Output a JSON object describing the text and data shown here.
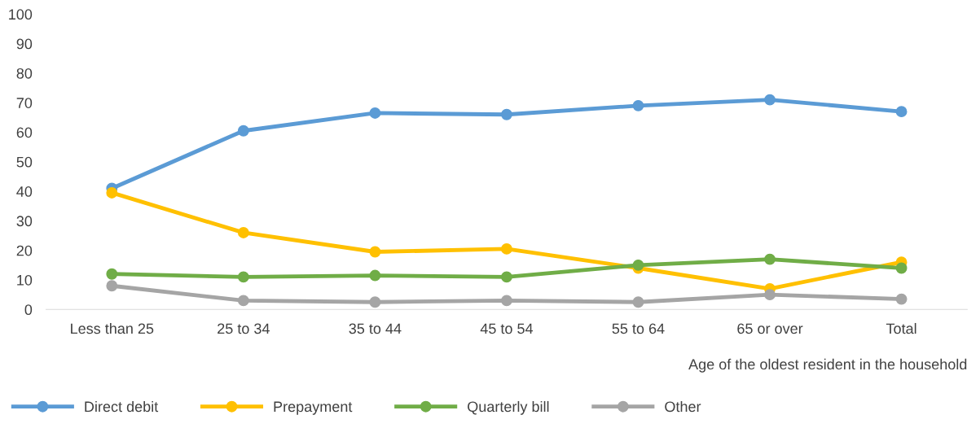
{
  "chart_data": {
    "type": "line",
    "xlabel": "Age of the oldest resident in the household",
    "categories": [
      "Less than 25",
      "25 to 34",
      "35 to 44",
      "45 to 54",
      "55 to 64",
      "65 or over",
      "Total"
    ],
    "series": [
      {
        "name": "Direct debit",
        "color": "#5b9bd5",
        "values": [
          41,
          60.5,
          66.5,
          66,
          69,
          71,
          67
        ]
      },
      {
        "name": "Prepayment",
        "color": "#ffc000",
        "values": [
          39.5,
          26,
          19.5,
          20.5,
          14,
          7,
          16
        ]
      },
      {
        "name": "Quarterly bill",
        "color": "#70ad47",
        "values": [
          12,
          11,
          11.5,
          11,
          15,
          17,
          14
        ]
      },
      {
        "name": "Other",
        "color": "#a5a5a5",
        "values": [
          8,
          3,
          2.5,
          3,
          2.5,
          5,
          3.5
        ]
      }
    ],
    "ylim": [
      0,
      100
    ],
    "yticks": [
      0,
      10,
      20,
      30,
      40,
      50,
      60,
      70,
      80,
      90,
      100
    ],
    "grid": false,
    "legend": "bottom left",
    "marker": "circle",
    "line_style": "solid"
  }
}
